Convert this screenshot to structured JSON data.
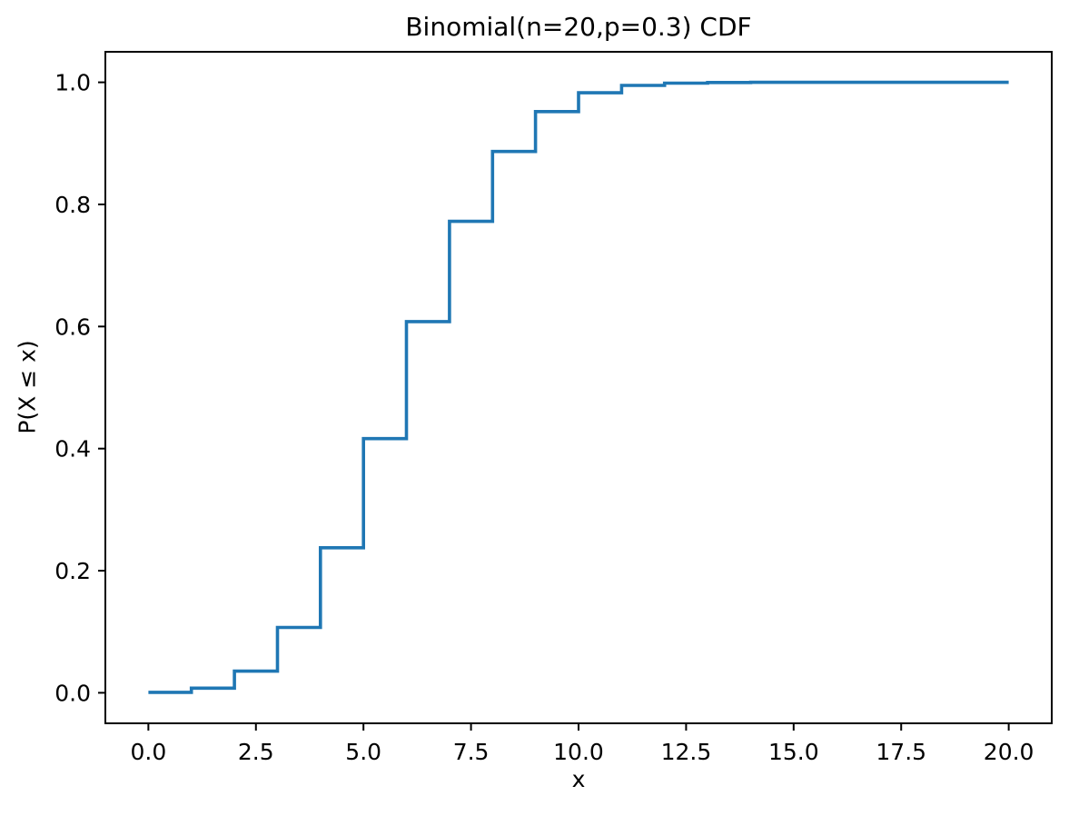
{
  "chart_data": {
    "type": "line",
    "subtype": "step-post",
    "title": "Binomial(n=20,p=0.3) CDF",
    "xlabel": "x",
    "ylabel": "P(X ≤ x)",
    "line_color": "#1f77b4",
    "axis_color": "#000000",
    "background_color": "#ffffff",
    "grid": false,
    "legend": null,
    "x": [
      0,
      1,
      2,
      3,
      4,
      5,
      6,
      7,
      8,
      9,
      10,
      11,
      12,
      13,
      14,
      15,
      16,
      17,
      18,
      19,
      20
    ],
    "y": [
      0.000798,
      0.007637,
      0.035483,
      0.107087,
      0.237508,
      0.416371,
      0.60801,
      0.772272,
      0.886669,
      0.952038,
      0.982855,
      0.994862,
      0.998721,
      0.999739,
      0.999957,
      0.999995,
      0.999999,
      1.0,
      1.0,
      1.0,
      1.0
    ],
    "xlim": [
      -1,
      21
    ],
    "ylim": [
      -0.05,
      1.05
    ],
    "xticks": [
      0,
      2.5,
      5,
      7.5,
      10,
      12.5,
      15,
      17.5,
      20
    ],
    "xtick_labels": [
      "0.0",
      "2.5",
      "5.0",
      "7.5",
      "10.0",
      "12.5",
      "15.0",
      "17.5",
      "20.0"
    ],
    "yticks": [
      0,
      0.2,
      0.4,
      0.6,
      0.8,
      1.0
    ],
    "ytick_labels": [
      "0.0",
      "0.2",
      "0.4",
      "0.6",
      "0.8",
      "1.0"
    ]
  }
}
